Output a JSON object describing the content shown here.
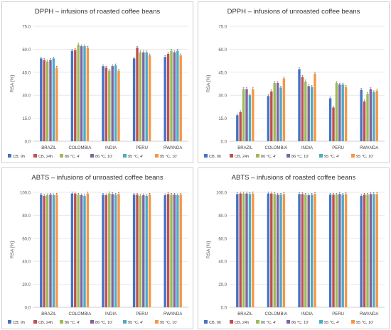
{
  "series_labels": [
    "CB, 9h",
    "CB, 24h",
    "86 °C, 4'",
    "86 °C, 10'",
    "95 °C, 4'",
    "95 °C, 10'"
  ],
  "series_colors": [
    "#4472C4",
    "#C0504D",
    "#9BBB59",
    "#8064A2",
    "#4BACC6",
    "#F79646"
  ],
  "chart_data": [
    {
      "type": "bar",
      "title": "DPPH – infusions of roasted coffee beans",
      "ylabel": "RSA [%]",
      "ylim": [
        0,
        75
      ],
      "yticks": [
        "0.0",
        "15.0",
        "30.0",
        "45.0",
        "60.0",
        "75.0"
      ],
      "show_ylabel": true,
      "grid": true,
      "legend": "bottom",
      "categories": [
        "BRAZIL",
        "COLOMBIA",
        "INDIA",
        "PERU",
        "RWANDA"
      ],
      "series": [
        {
          "name": "CB, 9h",
          "values": [
            54,
            59,
            49,
            54,
            55
          ]
        },
        {
          "name": "CB, 24h",
          "values": [
            53,
            59.5,
            48,
            61,
            57
          ]
        },
        {
          "name": "86 °C, 4'",
          "values": [
            52,
            63,
            46,
            58,
            59
          ]
        },
        {
          "name": "86 °C, 10'",
          "values": [
            53,
            62,
            49,
            58,
            58
          ]
        },
        {
          "name": "95 °C, 4'",
          "values": [
            54,
            62,
            49.5,
            58,
            59
          ]
        },
        {
          "name": "95 °C, 10'",
          "values": [
            48,
            61,
            46,
            56,
            56
          ]
        }
      ]
    },
    {
      "type": "bar",
      "title": "DPPH – infusions of unroasted coffee beans",
      "ylabel": "RSA [%]",
      "ylim": [
        0,
        75
      ],
      "yticks": [
        "0.0",
        "15.0",
        "30.0",
        "45.0",
        "60.0",
        "75.0"
      ],
      "show_ylabel": true,
      "grid": true,
      "legend": "bottom",
      "categories": [
        "BRAZIL",
        "COLOMBIA",
        "INDIA",
        "PERU",
        "RWANDA"
      ],
      "series": [
        {
          "name": "CB, 9h",
          "values": [
            17,
            29.5,
            47,
            28,
            33.5
          ]
        },
        {
          "name": "CB, 24h",
          "values": [
            19,
            32.5,
            42,
            22,
            26
          ]
        },
        {
          "name": "86 °C, 4'",
          "values": [
            34,
            38,
            39,
            38,
            31
          ]
        },
        {
          "name": "86 °C, 10'",
          "values": [
            34,
            38,
            36,
            37,
            34
          ]
        },
        {
          "name": "95 °C, 4'",
          "values": [
            30,
            35,
            35.5,
            37,
            32
          ]
        },
        {
          "name": "95 °C, 10'",
          "values": [
            34,
            41,
            44,
            35.5,
            33
          ]
        }
      ]
    },
    {
      "type": "bar",
      "title": "ABTS – infusions of unroasted coffee beans",
      "ylabel": "RSA [%]",
      "ylim": [
        0,
        100
      ],
      "yticks": [
        "0.0",
        "20.0",
        "40.0",
        "60.0",
        "80.0",
        "100.0"
      ],
      "show_ylabel": true,
      "grid": true,
      "legend": "bottom",
      "categories": [
        "BRAZIL",
        "COLOMBIA",
        "INDIA",
        "PERU",
        "RWANDA"
      ],
      "series": [
        {
          "name": "CB, 9h",
          "values": [
            98,
            99,
            98,
            98,
            97.5
          ]
        },
        {
          "name": "CB, 24h",
          "values": [
            97,
            99,
            97.5,
            98,
            98.5
          ]
        },
        {
          "name": "86 °C, 4'",
          "values": [
            97.5,
            98,
            99,
            97,
            98
          ]
        },
        {
          "name": "86 °C, 10'",
          "values": [
            98,
            97.5,
            98.5,
            97.5,
            98
          ]
        },
        {
          "name": "95 °C, 4'",
          "values": [
            97.5,
            97,
            98,
            97,
            97.5
          ]
        },
        {
          "name": "95 °C, 10'",
          "values": [
            98,
            99,
            98.5,
            98,
            98
          ]
        }
      ]
    },
    {
      "type": "bar",
      "title": "ABTS – infusions of roasted coffee beans",
      "ylabel": "RSA [%]",
      "ylim": [
        0,
        100
      ],
      "yticks": [
        "0.0",
        "20.0",
        "40.0",
        "60.0",
        "80.0",
        "100.0"
      ],
      "show_ylabel": true,
      "grid": true,
      "legend": "bottom",
      "categories": [
        "BRAZIL",
        "COLOMBIA",
        "INDIA",
        "PERU",
        "RWANDA"
      ],
      "series": [
        {
          "name": "CB, 9h",
          "values": [
            98.5,
            99,
            98.5,
            98,
            97
          ]
        },
        {
          "name": "CB, 24h",
          "values": [
            99,
            99,
            98.5,
            98,
            98
          ]
        },
        {
          "name": "86 °C, 4'",
          "values": [
            99,
            98.5,
            98,
            98,
            98
          ]
        },
        {
          "name": "86 °C, 10'",
          "values": [
            99,
            98,
            97.5,
            98.5,
            98.5
          ]
        },
        {
          "name": "95 °C, 4'",
          "values": [
            98.5,
            98,
            98,
            98,
            98.5
          ]
        },
        {
          "name": "95 °C, 10'",
          "values": [
            99,
            98.5,
            98.5,
            98.5,
            98.5
          ]
        }
      ]
    }
  ]
}
